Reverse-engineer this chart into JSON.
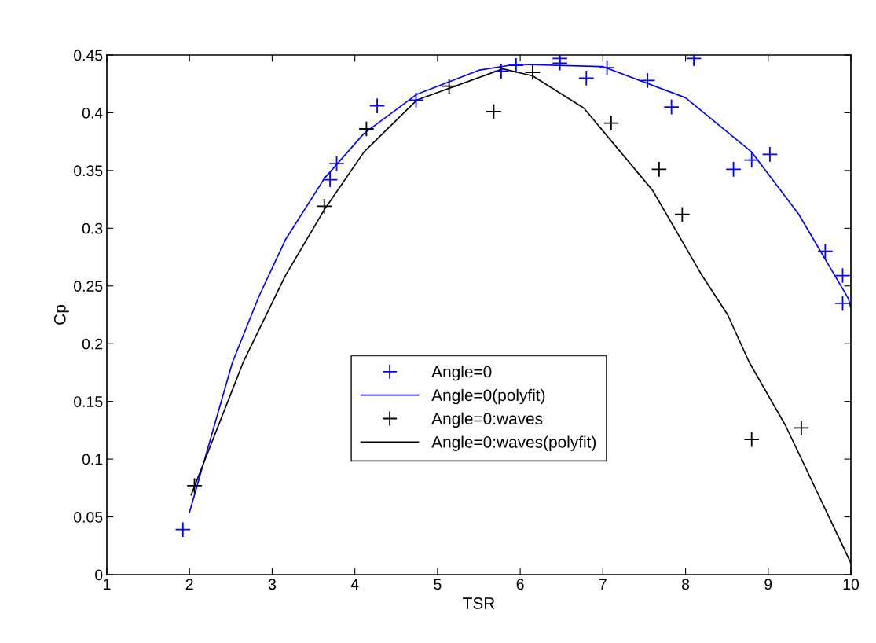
{
  "chart_data": {
    "type": "scatter",
    "xlabel": "TSR",
    "ylabel": "Cp",
    "xlim": [
      1,
      10
    ],
    "ylim": [
      0,
      0.45
    ],
    "xticks": [
      1,
      2,
      3,
      4,
      5,
      6,
      7,
      8,
      9,
      10
    ],
    "yticks": [
      0,
      0.05,
      0.1,
      0.15,
      0.2,
      0.25,
      0.3,
      0.35,
      0.4,
      0.45
    ],
    "grid": false,
    "legend": "center",
    "series": [
      {
        "name": "Angle=0",
        "marker": "cross",
        "color": "#0000ff",
        "x": [
          1.92,
          3.7,
          3.78,
          4.27,
          4.74,
          5.77,
          5.95,
          6.48,
          6.48,
          6.8,
          7.05,
          7.54,
          7.83,
          8.1,
          8.58,
          8.8,
          9.02,
          9.69,
          9.9,
          9.9
        ],
        "values": [
          0.039,
          0.342,
          0.356,
          0.406,
          0.411,
          0.436,
          0.441,
          0.447,
          0.443,
          0.43,
          0.439,
          0.428,
          0.405,
          0.447,
          0.351,
          0.359,
          0.364,
          0.28,
          0.259,
          0.235
        ]
      },
      {
        "name": "Angle=0(polyfit)",
        "type": "line",
        "marker": "none",
        "line_style": "solid",
        "color": "#0000ff",
        "x": [
          2.0,
          2.52,
          2.84,
          3.16,
          3.63,
          4.11,
          4.75,
          5.51,
          5.95,
          7.0,
          8.0,
          8.8,
          9.37,
          9.97,
          10.0
        ],
        "values": [
          0.054,
          0.184,
          0.241,
          0.29,
          0.343,
          0.382,
          0.416,
          0.437,
          0.442,
          0.44,
          0.413,
          0.366,
          0.312,
          0.239,
          0.231
        ]
      },
      {
        "name": "Angle=0:waves",
        "marker": "cross",
        "color": "#000000",
        "x": [
          2.06,
          3.63,
          4.14,
          5.14,
          5.68,
          6.15,
          7.1,
          7.68,
          7.96,
          8.8,
          9.4
        ],
        "values": [
          0.077,
          0.319,
          0.386,
          0.423,
          0.401,
          0.435,
          0.391,
          0.351,
          0.312,
          0.117,
          0.127
        ]
      },
      {
        "name": "Angle=0:waves(polyfit)",
        "type": "line",
        "marker": "none",
        "line_style": "solid",
        "color": "#000000",
        "x": [
          2.02,
          2.65,
          3.16,
          3.63,
          4.11,
          4.75,
          5.79,
          6.15,
          6.77,
          7.6,
          8.2,
          8.51,
          8.77,
          9.21,
          10.0
        ],
        "values": [
          0.069,
          0.184,
          0.259,
          0.316,
          0.366,
          0.411,
          0.438,
          0.432,
          0.404,
          0.333,
          0.259,
          0.225,
          0.184,
          0.129,
          0.01
        ]
      }
    ]
  }
}
